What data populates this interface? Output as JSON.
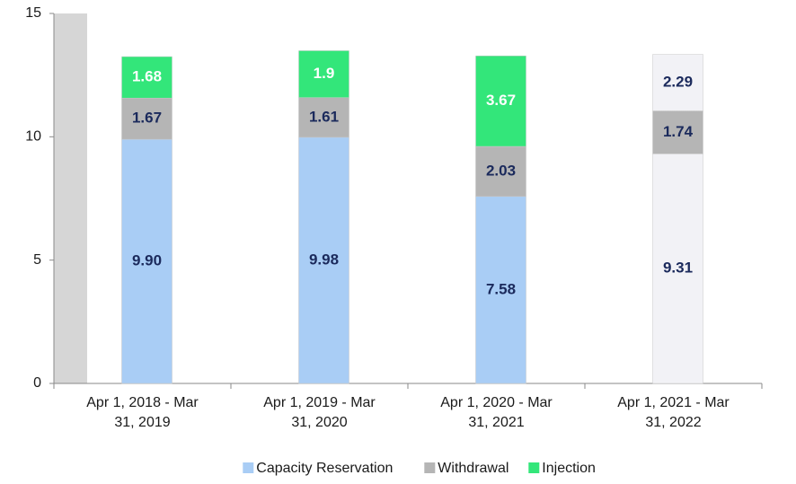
{
  "chart_data": {
    "type": "stacked_bar",
    "categories": [
      "Apr 1, 2018 - Mar 31, 2019",
      "Apr 1, 2019 - Mar 31, 2020",
      "Apr 1, 2020 - Mar 31, 2021",
      "Apr 1, 2021 - Mar 31, 2022"
    ],
    "series": [
      {
        "name": "Capacity Reservation",
        "color": "#a9cdf5",
        "colors": [
          "#a9cdf5",
          "#a9cdf5",
          "#a9cdf5",
          "#f2f2f6"
        ],
        "label_colors": [
          "#1b2a5c",
          "#1b2a5c",
          "#1b2a5c",
          "#1b2a5c"
        ],
        "values": [
          9.9,
          9.98,
          7.58,
          9.31
        ],
        "value_labels": [
          "9.90",
          "9.98",
          "7.58",
          "9.31"
        ]
      },
      {
        "name": "Withdrawal",
        "color": "#b5b5b5",
        "colors": [
          "#b5b5b5",
          "#b5b5b5",
          "#b5b5b5",
          "#b5b5b5"
        ],
        "label_colors": [
          "#1b2a5c",
          "#1b2a5c",
          "#1b2a5c",
          "#1b2a5c"
        ],
        "values": [
          1.67,
          1.61,
          2.03,
          1.74
        ]
      },
      {
        "name": "Injection",
        "color": "#33e67a",
        "colors": [
          "#33e67a",
          "#33e67a",
          "#33e67a",
          "#f2f2f6"
        ],
        "label_colors": [
          "#ffffff",
          "#ffffff",
          "#ffffff",
          "#1b2a5c"
        ],
        "values": [
          1.68,
          1.9,
          3.67,
          2.29
        ]
      }
    ],
    "ylim": [
      0,
      15
    ],
    "yticks": [
      0,
      5,
      10,
      15
    ],
    "legend": "bottom"
  }
}
